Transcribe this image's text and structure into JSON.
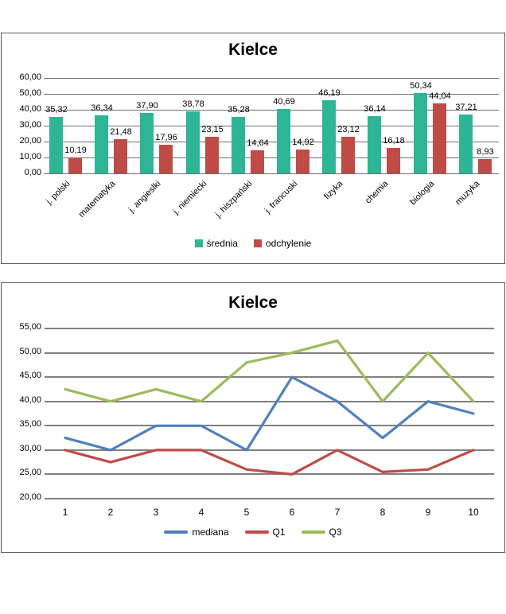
{
  "chart_data": [
    {
      "type": "bar",
      "title": "Kielce",
      "categories": [
        "j. polski",
        "matematyka",
        "j. angieslki",
        "j. niemiecki",
        "j. hiszpański",
        "j. francuski",
        "fizyka",
        "chemia",
        "biologia",
        "muzyka"
      ],
      "series": [
        {
          "name": "średnia",
          "color": "#2db596",
          "values": [
            35.32,
            36.34,
            37.9,
            38.78,
            35.28,
            40.69,
            46.19,
            36.14,
            50.34,
            37.21
          ],
          "labels": [
            "35,32",
            "36,34",
            "37,90",
            "38,78",
            "35,28",
            "40,69",
            "46,19",
            "36,14",
            "50,34",
            "37,21"
          ]
        },
        {
          "name": "odchylenie",
          "color": "#bf4b47",
          "values": [
            10.19,
            21.48,
            17.96,
            23.15,
            14.64,
            14.92,
            23.12,
            16.18,
            44.04,
            8.93
          ],
          "labels": [
            "10,19",
            "21,48",
            "17,96",
            "23,15",
            "14,64",
            "14,92",
            "23,12",
            "16,18",
            "44,04",
            "8,93"
          ]
        }
      ],
      "ylim": [
        0,
        60
      ],
      "y_tick_step": 10,
      "y_tick_labels": [
        "0,00",
        "10,00",
        "20,00",
        "30,00",
        "40,00",
        "50,00",
        "60,00"
      ],
      "grid": true,
      "legend_position": "bottom"
    },
    {
      "type": "line",
      "title": "Kielce",
      "x": [
        1,
        2,
        3,
        4,
        5,
        6,
        7,
        8,
        9,
        10
      ],
      "x_tick_labels": [
        "1",
        "2",
        "3",
        "4",
        "5",
        "6",
        "7",
        "8",
        "9",
        "10"
      ],
      "series": [
        {
          "name": "mediana",
          "color": "#4f81bd",
          "values": [
            32.5,
            30,
            35,
            35,
            30,
            45,
            40,
            32.5,
            40,
            37.5
          ]
        },
        {
          "name": "Q1",
          "color": "#be4b48",
          "values": [
            30,
            27.5,
            30,
            30,
            26,
            25,
            30,
            25.5,
            26,
            30
          ]
        },
        {
          "name": "Q3",
          "color": "#9bbb59",
          "values": [
            42.5,
            40,
            42.5,
            40,
            48,
            50,
            52.5,
            40,
            50,
            40
          ]
        }
      ],
      "ylim": [
        20,
        55
      ],
      "y_tick_step": 5,
      "y_tick_labels": [
        "20,00",
        "25,00",
        "30,00",
        "35,00",
        "40,00",
        "45,00",
        "50,00",
        "55,00"
      ],
      "grid": true,
      "legend_position": "bottom"
    }
  ]
}
